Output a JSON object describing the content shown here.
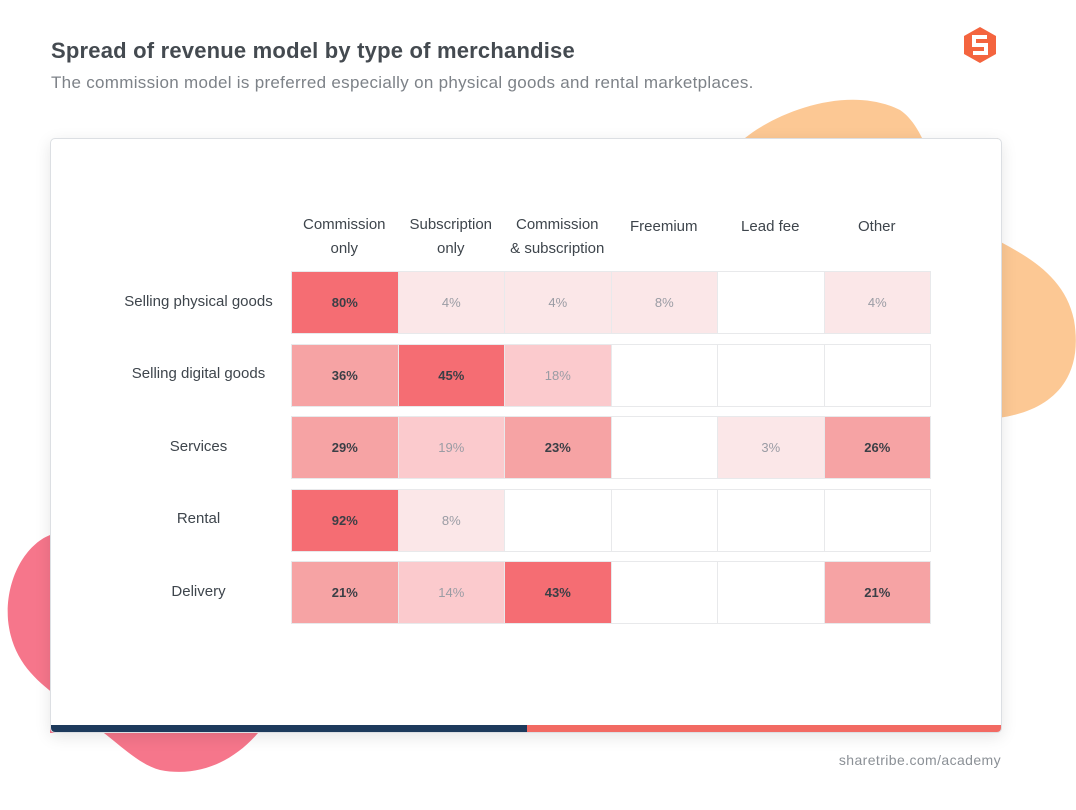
{
  "colors": {
    "background": "#ffffff",
    "blob_orange": "#fcc894",
    "blob_pink": "#f6768b",
    "bar_navy": "#1d3a5c",
    "bar_coral": "#f26a63",
    "logo": "#f4643e",
    "scale": [
      "#fbe7e8",
      "#fbcacd",
      "#f6a3a4",
      "#f56d73"
    ]
  },
  "icons": {
    "logo": "sharetribe-logo-icon"
  },
  "header": {
    "title": "Spread of revenue model by type of merchandise",
    "subtitle": "The commission model is preferred especially on physical goods and rental marketplaces."
  },
  "footer": {
    "text": "sharetribe.com/academy"
  },
  "chart_data": {
    "type": "heatmap",
    "title": "Spread of revenue model by type of merchandise",
    "subtitle": "The commission model is preferred especially on physical goods and rental marketplaces.",
    "columns": [
      [
        "Commission",
        "only"
      ],
      [
        "Subscription",
        "only"
      ],
      [
        "Commission",
        "& subscription"
      ],
      [
        "Freemium"
      ],
      [
        "Lead fee"
      ],
      [
        "Other"
      ]
    ],
    "rows": [
      {
        "label": "Selling physical goods",
        "values": [
          80,
          4,
          4,
          8,
          null,
          4
        ]
      },
      {
        "label": "Selling digital goods",
        "values": [
          36,
          45,
          18,
          null,
          null,
          null
        ]
      },
      {
        "label": "Services",
        "values": [
          29,
          19,
          23,
          null,
          3,
          26
        ]
      },
      {
        "label": "Rental",
        "values": [
          92,
          8,
          null,
          null,
          null,
          null
        ]
      },
      {
        "label": "Delivery",
        "values": [
          21,
          14,
          43,
          null,
          null,
          21
        ]
      }
    ],
    "unit": "%"
  }
}
